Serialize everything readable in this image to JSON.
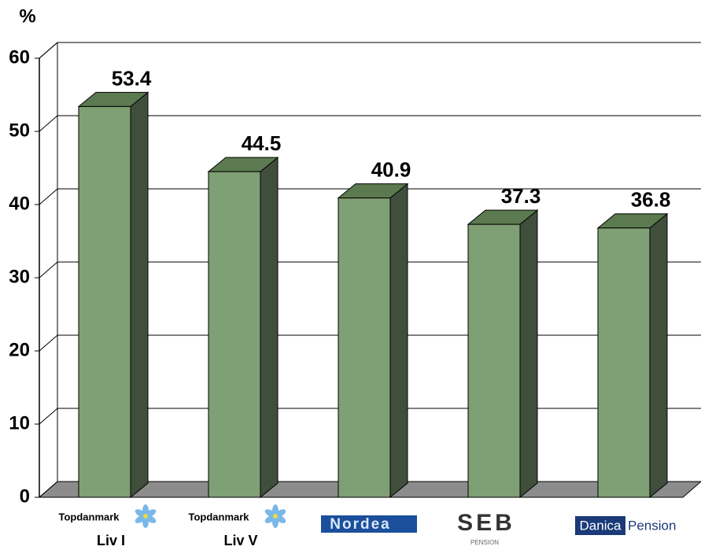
{
  "chart_data": {
    "type": "bar3d",
    "y_axis_label": "%",
    "logos": [
      "Topdanmark",
      "Topdanmark",
      "Nordea",
      "SEB",
      "Danica"
    ],
    "logo_subtexts": [
      null,
      null,
      null,
      "PENSION",
      "Pension"
    ],
    "categories": [
      "Liv I",
      "Liv V",
      null,
      null,
      null
    ],
    "values": [
      53.4,
      44.5,
      40.9,
      37.3,
      36.8
    ],
    "color": "#7f9f74",
    "ylim": [
      0,
      60
    ],
    "yticks": [
      0,
      10,
      20,
      30,
      40,
      50,
      60
    ],
    "grid": true
  }
}
